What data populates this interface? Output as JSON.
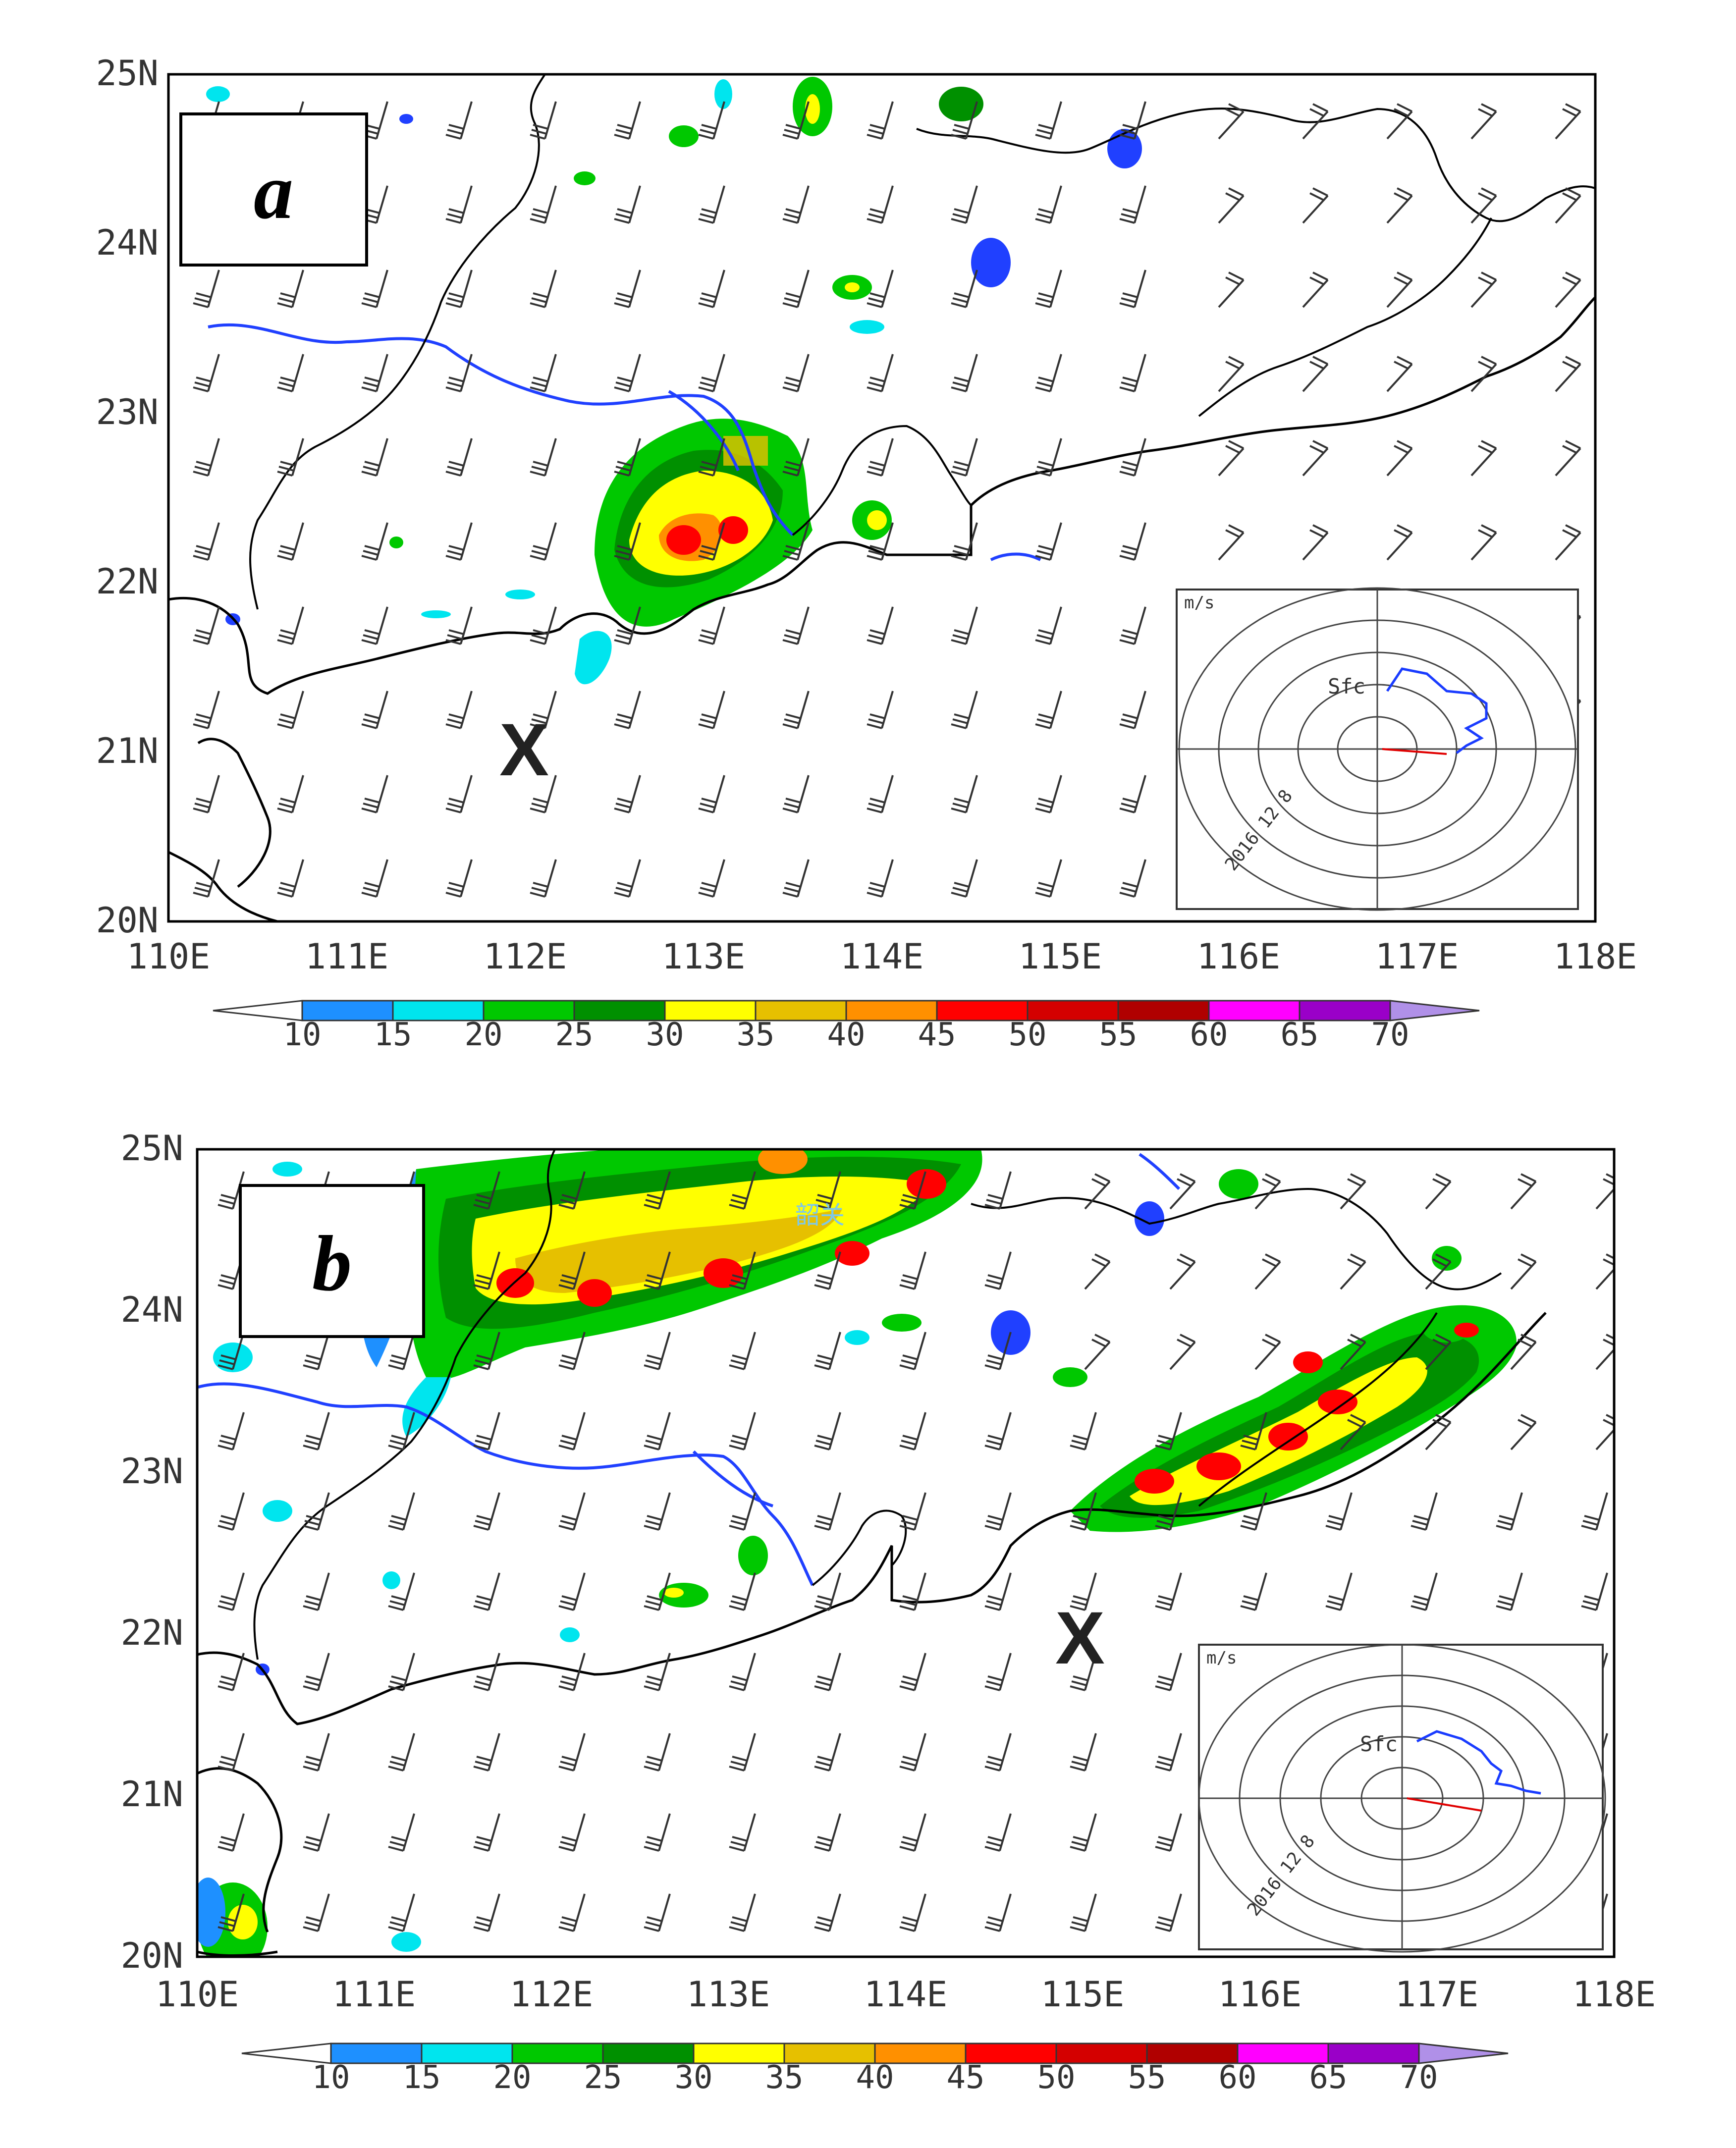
{
  "panels": [
    {
      "id": "a",
      "label": "a",
      "lat_ticks": [
        "25N",
        "24N",
        "23N",
        "22N",
        "21N",
        "20N"
      ],
      "lon_ticks": [
        "110E",
        "111E",
        "112E",
        "113E",
        "114E",
        "115E",
        "116E",
        "117E",
        "118E"
      ],
      "marker": {
        "symbol": "X",
        "lon": 112.0,
        "lat": 21.0
      },
      "inset": {
        "units": "m/s",
        "surface_label": "Sfc",
        "date_label": "2016 12 8"
      },
      "colorbar_labels": [
        "10",
        "15",
        "20",
        "25",
        "30",
        "35",
        "40",
        "45",
        "50",
        "55",
        "60",
        "65",
        "70"
      ]
    },
    {
      "id": "b",
      "label": "b",
      "lat_ticks": [
        "25N",
        "24N",
        "23N",
        "22N",
        "21N",
        "20N"
      ],
      "lon_ticks": [
        "110E",
        "111E",
        "112E",
        "113E",
        "114E",
        "115E",
        "116E",
        "117E",
        "118E"
      ],
      "marker": {
        "symbol": "X",
        "lon": 115.0,
        "lat": 22.0
      },
      "map_text": "韶关",
      "inset": {
        "units": "m/s",
        "surface_label": "Sfc",
        "date_label": "2016 12 8"
      },
      "colorbar_labels": [
        "10",
        "15",
        "20",
        "25",
        "30",
        "35",
        "40",
        "45",
        "50",
        "55",
        "60",
        "65",
        "70"
      ]
    }
  ],
  "colorbar_colors": [
    "#1e90ff",
    "#00e5ee",
    "#00c800",
    "#009000",
    "#ffff00",
    "#e6c000",
    "#ff9000",
    "#ff0000",
    "#d40000",
    "#b00000",
    "#ff00ff",
    "#9a00c8"
  ],
  "colors": {
    "coast": "#000000",
    "river": "#2040ff",
    "barb": "#333333",
    "inset_trace": "#1a3cff",
    "inset_shear": "#e00000"
  }
}
